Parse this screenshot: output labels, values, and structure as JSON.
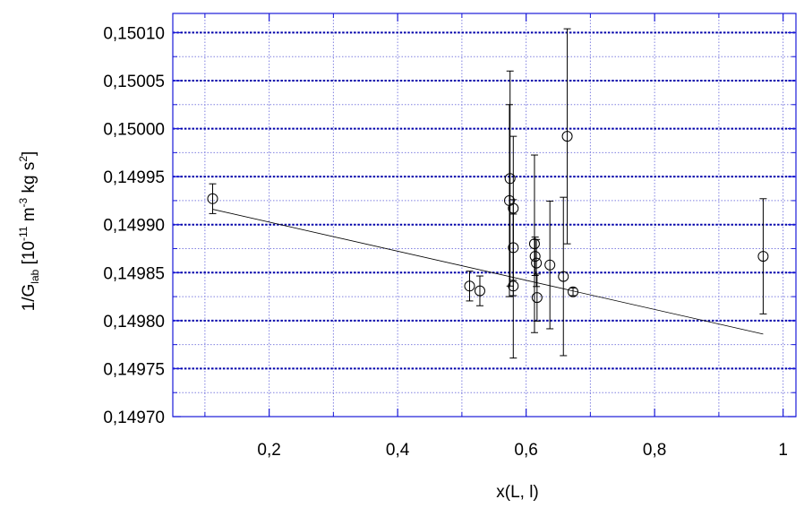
{
  "chart_data": {
    "type": "scatter",
    "xlabel": "x(L,  l)",
    "ylabel": {
      "base": "1/G",
      "base_sub": "lab",
      "units_open": "  [10",
      "exp1": "-11",
      "m": " m",
      "exp2": "-3",
      "kg_s": " kg s",
      "exp3": "2",
      "units_close": "]"
    },
    "xlim": [
      0.05,
      1.02
    ],
    "ylim": [
      0.1497,
      0.15012
    ],
    "x_ticks": [
      0.2,
      0.4,
      0.6,
      0.8,
      1.0
    ],
    "x_tick_labels": [
      "0,2",
      "0,4",
      "0,6",
      "0,8",
      "1"
    ],
    "y_ticks": [
      0.1497,
      0.14975,
      0.1498,
      0.14985,
      0.1499,
      0.14995,
      0.15,
      0.15005,
      0.1501
    ],
    "y_tick_labels": [
      "0,14970",
      "0,14975",
      "0,14980",
      "0,14985",
      "0,14990",
      "0,14995",
      "0,15000",
      "0,15005",
      "0,15010"
    ],
    "x_minor_grid": [
      0.1,
      0.3,
      0.5,
      0.7,
      0.9
    ],
    "y_minor_grid": [
      0.149725,
      0.149775,
      0.149825,
      0.149875,
      0.149925,
      0.149975,
      0.150025,
      0.150075
    ],
    "grid": true,
    "points": [
      {
        "x": 0.112,
        "y": 0.149927,
        "yerr": 1.55e-05
      },
      {
        "x": 0.512,
        "y": 0.149836,
        "yerr": 1.55e-05
      },
      {
        "x": 0.528,
        "y": 0.149831,
        "yerr": 1.55e-05
      },
      {
        "x": 0.574,
        "y": 0.149925,
        "yerr": 0.0001
      },
      {
        "x": 0.575,
        "y": 0.149948,
        "yerr": 0.000112
      },
      {
        "x": 0.58,
        "y": 0.149917,
        "yerr": 7.5e-05
      },
      {
        "x": 0.58,
        "y": 0.149876,
        "yerr": 5e-05
      },
      {
        "x": 0.58,
        "y": 0.149836,
        "yerr": 7.5e-05
      },
      {
        "x": 0.613,
        "y": 0.14988,
        "yerr": 9.25e-05
      },
      {
        "x": 0.614,
        "y": 0.149867,
        "yerr": 2e-05
      },
      {
        "x": 0.616,
        "y": 0.14986,
        "yerr": 2.45e-05
      },
      {
        "x": 0.617,
        "y": 0.149824,
        "yerr": 2.45e-05
      },
      {
        "x": 0.637,
        "y": 0.149858,
        "yerr": 6.65e-05
      },
      {
        "x": 0.658,
        "y": 0.149846,
        "yerr": 8.25e-05
      },
      {
        "x": 0.664,
        "y": 0.149992,
        "yerr": 0.000112
      },
      {
        "x": 0.673,
        "y": 0.14983,
        "yerr": 4e-06
      },
      {
        "x": 0.969,
        "y": 0.149867,
        "yerr": 6e-05
      }
    ],
    "fit_line": {
      "x": [
        0.112,
        0.969
      ],
      "y": [
        0.149916,
        0.149786
      ]
    }
  },
  "colors": {
    "frame": "#1a1ad9",
    "major_grid": "#0000aa",
    "minor_grid": "#8080e0",
    "data": "#000000"
  }
}
